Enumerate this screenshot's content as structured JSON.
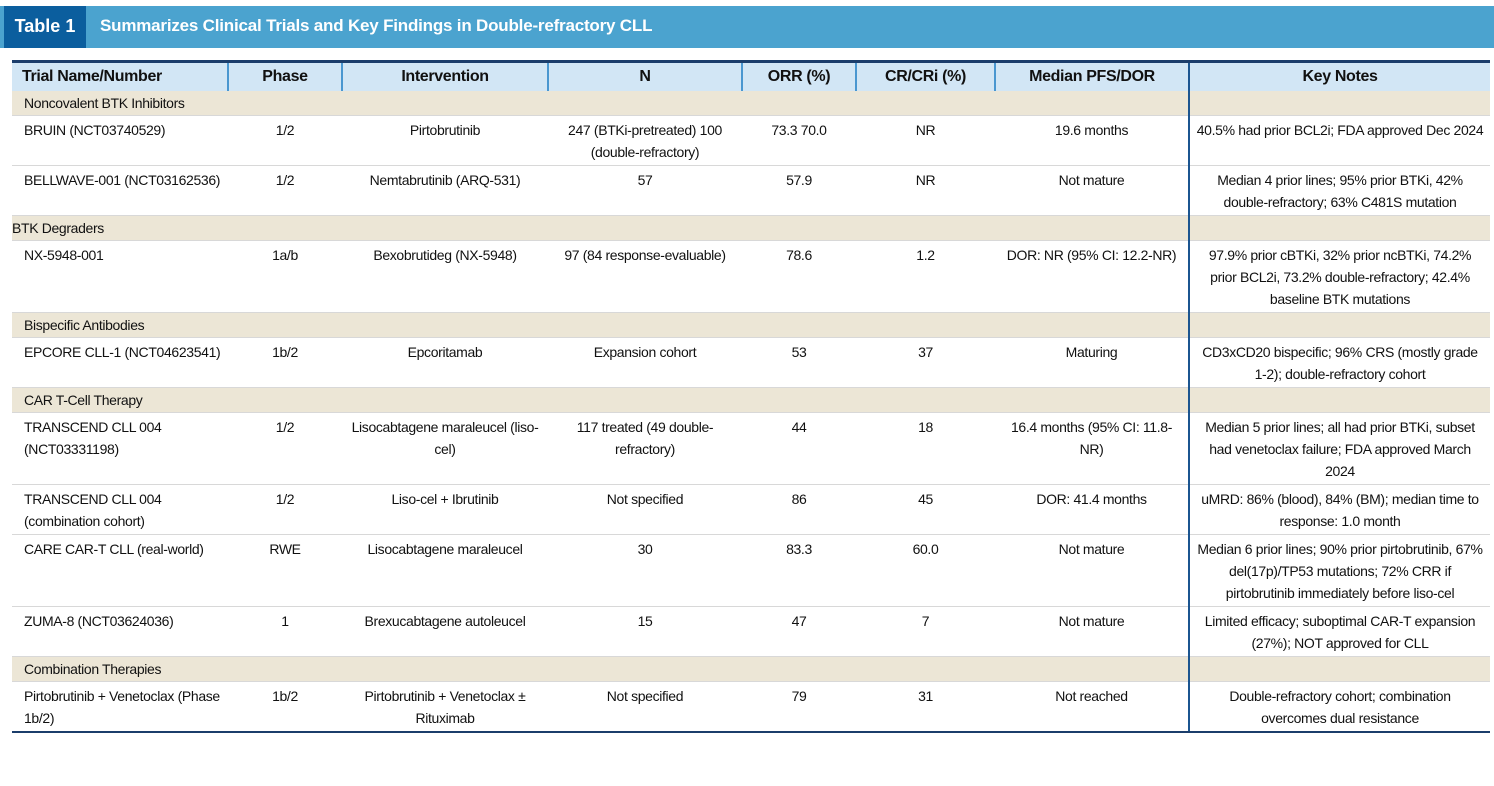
{
  "header": {
    "label": "Table 1",
    "title": "Summarizes Clinical Trials and Key Findings in Double-refractory CLL"
  },
  "table": {
    "columns": [
      "Trial Name/Number",
      "Phase",
      "Intervention",
      "N",
      "ORR (%)",
      "CR/CRi (%)",
      "Median PFS/DOR",
      "Key Notes"
    ],
    "sections": [
      {
        "title": "Noncovalent BTK Inhibitors",
        "rows": [
          [
            "BRUIN (NCT03740529)",
            "1/2",
            "Pirtobrutinib",
            "247 (BTKi-pretreated) 100 (double-refractory)",
            "73.3 70.0",
            "NR",
            "19.6 months",
            "40.5% had prior BCL2i; FDA approved Dec 2024"
          ],
          [
            "BELLWAVE-001 (NCT03162536)",
            "1/2",
            "Nemtabrutinib (ARQ-531)",
            "57",
            "57.9",
            "NR",
            "Not mature",
            "Median 4 prior lines; 95% prior BTKi, 42% double-refractory; 63% C481S mutation"
          ]
        ]
      },
      {
        "title": "BTK Degraders",
        "rows": [
          [
            "NX-5948-001",
            "1a/b",
            "Bexobrutideg (NX-5948)",
            "97 (84 response-evaluable)",
            "78.6",
            "1.2",
            "DOR: NR (95% CI: 12.2-NR)",
            "97.9% prior cBTKi, 32% prior ncBTKi, 74.2% prior BCL2i, 73.2% double-refractory; 42.4% baseline BTK mutations"
          ]
        ]
      },
      {
        "title": "Bispecific Antibodies",
        "rows": [
          [
            "EPCORE CLL-1 (NCT04623541)",
            "1b/2",
            "Epcoritamab",
            "Expansion cohort",
            "53",
            "37",
            "Maturing",
            "CD3xCD20 bispecific; 96% CRS (mostly grade 1-2); double-refractory cohort"
          ]
        ]
      },
      {
        "title": "CAR T-Cell Therapy",
        "rows": [
          [
            "TRANSCEND CLL 004 (NCT03331198)",
            "1/2",
            "Lisocabtagene maraleucel (liso-cel)",
            "117 treated (49 double-refractory)",
            "44",
            "18",
            "16.4 months (95% CI: 11.8-NR)",
            "Median 5 prior lines; all had prior BTKi, subset had venetoclax failure; FDA approved March 2024"
          ],
          [
            "TRANSCEND CLL 004 (combination cohort)",
            "1/2",
            "Liso-cel + Ibrutinib",
            "Not specified",
            "86",
            "45",
            "DOR: 41.4 months",
            "uMRD: 86% (blood), 84% (BM); median time to response: 1.0 month"
          ],
          [
            "CARE CAR-T CLL (real-world)",
            "RWE",
            "Lisocabtagene maraleucel",
            "30",
            "83.3",
            "60.0",
            "Not mature",
            "Median 6 prior lines; 90% prior pirtobrutinib, 67% del(17p)/TP53 mutations; 72% CRR if pirtobrutinib immediately before liso-cel"
          ],
          [
            "ZUMA-8 (NCT03624036)",
            "1",
            "Brexucabtagene autoleucel",
            "15",
            "47",
            "7",
            "Not mature",
            "Limited efficacy; suboptimal CAR-T expansion (27%); NOT approved for CLL"
          ]
        ]
      },
      {
        "title": "Combination Therapies",
        "rows": [
          [
            "Pirtobrutinib + Venetoclax (Phase 1b/2)",
            "1b/2",
            "Pirtobrutinib + Venetoclax ± Rituximab",
            "Not specified",
            "79",
            "31",
            "Not reached",
            "Double-refractory cohort; combination overcomes dual resistance"
          ]
        ]
      }
    ]
  }
}
